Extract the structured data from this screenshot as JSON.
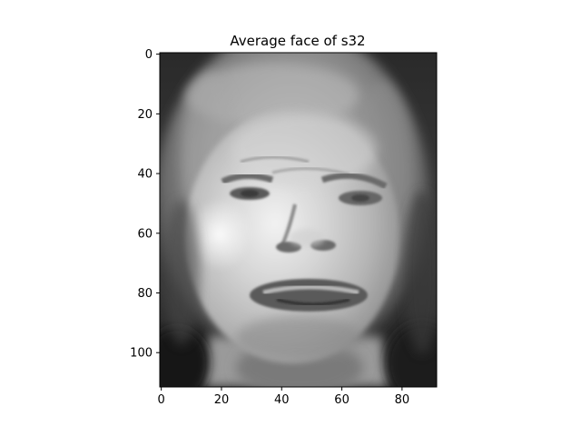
{
  "chart_data": {
    "type": "heatmap",
    "title": "Average face of s32",
    "colormap": "gray",
    "image_width": 92,
    "image_height": 112,
    "xlim": [
      -0.5,
      91.5
    ],
    "ylim": [
      111.5,
      -0.5
    ],
    "x_ticks": [
      0,
      20,
      40,
      60,
      80
    ],
    "y_ticks": [
      0,
      20,
      40,
      60,
      80,
      100
    ],
    "xlabel": "",
    "ylabel": "",
    "grid": false,
    "colors": {
      "frame": "#000000",
      "background": "#ffffff"
    }
  }
}
